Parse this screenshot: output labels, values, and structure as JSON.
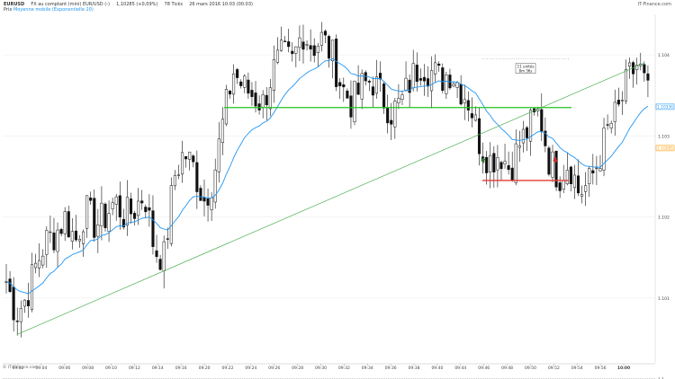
{
  "header": {
    "symbol": "EURUSD",
    "instrument": "FX au comptant (mini) EUR/USD (-)",
    "last_price": "1,10285 (+0,09%)",
    "ticks": "78 Ticks",
    "datetime": "26 mars 2016 10:03 (00:03)",
    "brand": "IT-Finance.com",
    "indicator_prefix": "Prix",
    "indicator_name": "Moyenne mobile (Exponentielle 20)"
  },
  "footer": {
    "brand": "© IT-Finance.com"
  },
  "colors": {
    "candle": "#111111",
    "ema": "#2196f3",
    "trendline": "#4caf50",
    "support": "#22c322",
    "low_line": "#e53935",
    "grid": "#eeeeee",
    "arrow_up": "#2e7d32",
    "arrow_down": "#d32f2f",
    "label_current": "#ff9800",
    "label_level": "#2196f3"
  },
  "chart_data": {
    "type": "candlestick",
    "ylim": [
      1.1002,
      1.1045
    ],
    "y_ticks": [
      {
        "value": 1.101,
        "label": "1.101"
      },
      {
        "value": 1.102,
        "label": "1.102"
      },
      {
        "value": 1.103,
        "label": "1.103"
      },
      {
        "value": 1.104,
        "label": "1.104"
      },
      {
        "value": 1.1,
        "label": "1.1"
      }
    ],
    "x_ticks": [
      "09:02",
      "09:04",
      "09:06",
      "09:08",
      "09:10",
      "09:12",
      "09:14",
      "09:16",
      "09:20",
      "09:22",
      "09:24",
      "09:26",
      "09:28",
      "09:30",
      "09:32",
      "09:34",
      "09:36",
      "09:38",
      "09:40",
      "09:44",
      "09:46",
      "09:48",
      "09:50",
      "09:52",
      "09:54",
      "09:56",
      "10:00"
    ],
    "x_tick_bold": "10:00",
    "price_labels": [
      {
        "value": 1.10336,
        "text": "1.10336",
        "kind": "level"
      },
      {
        "value": 1.10285,
        "text": "1.10285",
        "kind": "current"
      }
    ],
    "key_points": [
      1.1012,
      1.1008,
      1.101,
      1.1014,
      1.1017,
      1.1018,
      1.102,
      1.1017,
      1.1021,
      1.1019,
      1.102,
      1.1022,
      1.102,
      1.1021,
      1.1023,
      1.1016,
      1.1015,
      1.1025,
      1.1028,
      1.1026,
      1.1022,
      1.1025,
      1.1032,
      1.1038,
      1.1036,
      1.1035,
      1.1034,
      1.1038,
      1.104,
      1.1039,
      1.1043,
      1.1041,
      1.1042,
      1.104,
      1.1036,
      1.1034,
      1.1036,
      1.1037,
      1.1035,
      1.1033,
      1.1034,
      1.1037,
      1.1039,
      1.1038,
      1.1037,
      1.1038,
      1.1036,
      1.1034,
      1.1029,
      1.1027,
      1.1028,
      1.1026,
      1.1029,
      1.1031,
      1.1033,
      1.1027,
      1.1025,
      1.1027,
      1.1023,
      1.1024,
      1.1027,
      1.1031,
      1.1033,
      1.1037,
      1.1039,
      1.1035
    ],
    "ema": {
      "name": "Moyenne mobile (Exponentielle 20)",
      "period": 20
    },
    "annotations": {
      "support_level": {
        "y": 1.10335,
        "from": "09:24",
        "to": "09:56"
      },
      "low_level": {
        "y": 1.10245,
        "from": "09:42",
        "to": "09:54"
      },
      "trendline": {
        "from": [
          0,
          1.10055
        ],
        "to": [
          1,
          1.1039
        ]
      },
      "dotted_level": {
        "y": 1.10395
      },
      "tooltip": {
        "lines": [
          "11 unités",
          "8m 36s"
        ]
      },
      "arrow_up": {
        "at": "09:42",
        "y": 1.1027
      },
      "arrow_down": {
        "at": "09:50",
        "y": 1.1027
      }
    }
  }
}
